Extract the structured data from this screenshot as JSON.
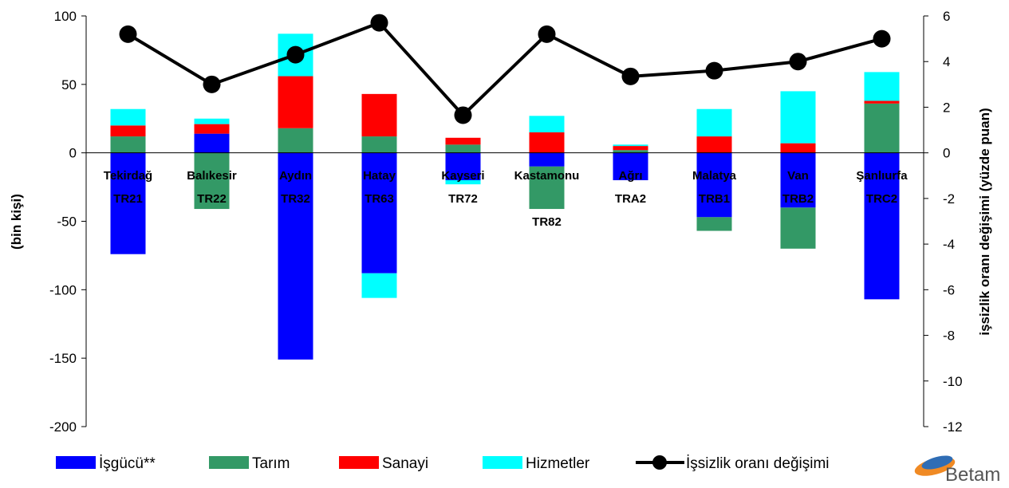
{
  "chart_data": {
    "type": "bar",
    "stacked": true,
    "categories": [
      [
        "Tekirdağ",
        "TR21"
      ],
      [
        "Balıkesir",
        "TR22"
      ],
      [
        "Aydın",
        "TR32"
      ],
      [
        "Hatay",
        "TR63"
      ],
      [
        "Kayseri",
        "TR72"
      ],
      [
        "Kastamonu",
        "TR82"
      ],
      [
        "Ağrı",
        "TRA2"
      ],
      [
        "Malatya",
        "TRB1"
      ],
      [
        "Van",
        "TRB2"
      ],
      [
        "Şanlıurfa",
        "TRC2"
      ]
    ],
    "series": [
      {
        "name": "İşgücü**",
        "color": "#0000FF",
        "values": [
          -74,
          14,
          -151,
          -88,
          -20,
          -10,
          -20,
          -47,
          -40,
          -107
        ]
      },
      {
        "name": "Tarım",
        "color": "#339966",
        "values": [
          12,
          -41,
          18,
          12,
          6,
          -31,
          2,
          -10,
          -30,
          36
        ]
      },
      {
        "name": "Sanayi",
        "color": "#FF0000",
        "values": [
          8,
          7,
          38,
          31,
          5,
          15,
          3,
          12,
          7,
          2
        ]
      },
      {
        "name": "Hizmetler",
        "color": "#00FFFF",
        "values": [
          12,
          4,
          31,
          -18,
          -3,
          12,
          1,
          20,
          38,
          21
        ]
      }
    ],
    "line_series": {
      "name": "İşsizlik oranı değişimi",
      "color": "#000000",
      "axis": "right",
      "values": [
        5.2,
        3.0,
        4.3,
        5.7,
        1.65,
        5.2,
        3.35,
        3.6,
        4.0,
        5.0
      ]
    },
    "ylabel": "(bin kişi)",
    "y2label": "işsizlik oranı değişimi (yüzde puan)",
    "ylim": [
      -200,
      100
    ],
    "y2lim": [
      -12,
      6
    ],
    "yticks": [
      -200,
      -150,
      -100,
      -50,
      0,
      50,
      100
    ],
    "y2ticks": [
      -12,
      -10,
      -8,
      -6,
      -4,
      -2,
      0,
      2,
      4,
      6
    ],
    "legend_position": "bottom"
  },
  "logo": {
    "text": "Betam"
  }
}
